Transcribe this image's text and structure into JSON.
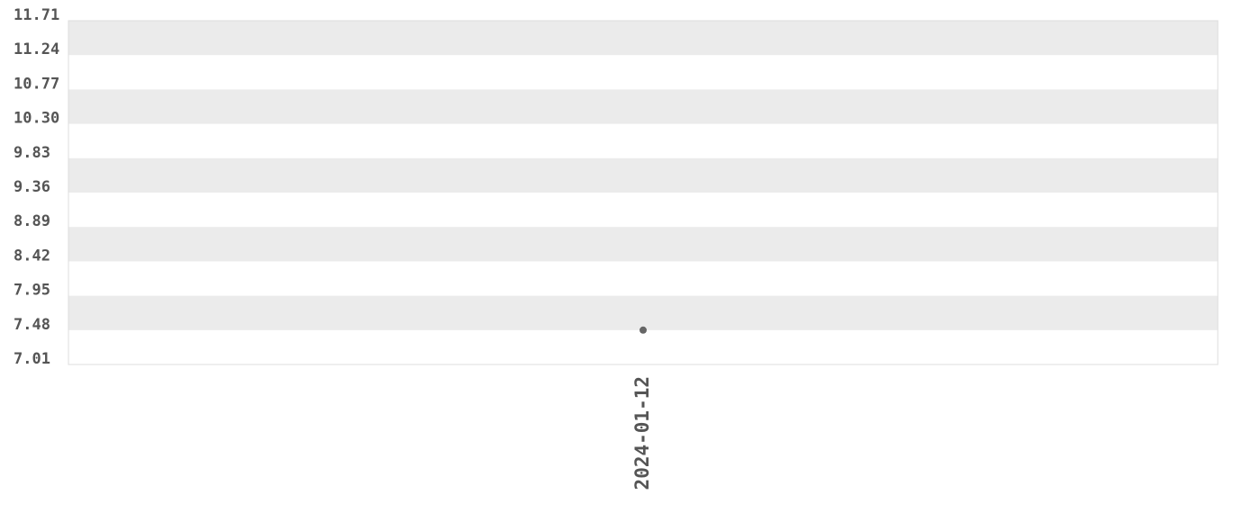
{
  "chart_data": {
    "type": "scatter",
    "title": "",
    "xlabel": "",
    "ylabel": "",
    "x": [
      "2024-01-12"
    ],
    "y": [
      7.48
    ],
    "ylim": [
      7.01,
      11.71
    ],
    "yticks": [
      "7.01",
      "7.48",
      "7.95",
      "8.42",
      "8.89",
      "9.36",
      "9.83",
      "10.30",
      "10.77",
      "11.24",
      "11.71"
    ],
    "xticks": [
      "2024-01-12"
    ],
    "grid": "alternating horizontal bands",
    "colors": {
      "band": "#ebebeb",
      "point": "#666666",
      "text": "#555555",
      "border": "#dddddd"
    }
  }
}
